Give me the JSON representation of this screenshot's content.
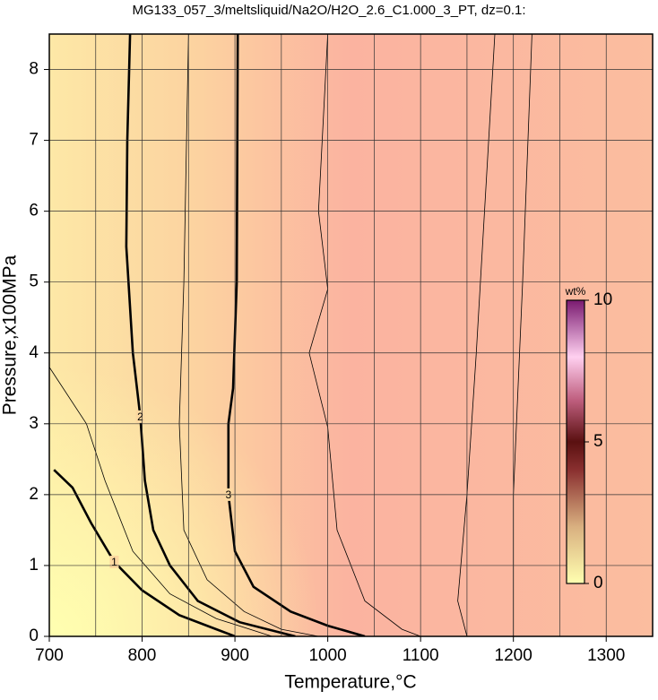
{
  "chart_data": {
    "type": "contour",
    "title": "MG133_057_3/meltsliquid/Na2O/H2O_2.6_C1.000_3_PT, dz=0.1:",
    "x_label": "Temperature,°C",
    "y_label": "Pressure,x100MPa",
    "xlim": [
      700,
      1350
    ],
    "ylim": [
      0,
      8.5
    ],
    "xticks": [
      700,
      800,
      900,
      1000,
      1100,
      1200,
      1300
    ],
    "yticks": [
      0,
      1,
      2,
      3,
      4,
      5,
      6,
      7,
      8
    ],
    "xgrid": [
      750,
      850,
      950,
      1050,
      1150,
      1250
    ],
    "grid": true,
    "contours": [
      {
        "level": 1,
        "labeled": true,
        "x": [
          705,
          725,
          745,
          770,
          800,
          840,
          880,
          900
        ],
        "y": [
          2.35,
          2.1,
          1.6,
          1.05,
          0.65,
          0.3,
          0.1,
          0
        ]
      },
      {
        "level": 2,
        "labeled": true,
        "x": [
          787,
          784,
          783,
          790,
          798,
          803,
          812,
          830,
          860,
          905,
          965
        ],
        "y": [
          8.5,
          7,
          5.5,
          4,
          3.1,
          2.2,
          1.5,
          1.0,
          0.5,
          0.2,
          0
        ]
      },
      {
        "level": 3,
        "labeled": true,
        "x": [
          903,
          902,
          898,
          893,
          893,
          900,
          920,
          960,
          1000,
          1040
        ],
        "y": [
          8.5,
          5,
          3.5,
          3,
          2,
          1.2,
          0.7,
          0.35,
          0.15,
          0
        ]
      },
      {
        "level": 1.5,
        "labeled": false,
        "x": [
          700,
          740,
          760,
          790,
          830,
          880,
          940
        ],
        "y": [
          3.8,
          3.0,
          2.2,
          1.2,
          0.6,
          0.25,
          0
        ]
      },
      {
        "level": 2.5,
        "labeled": false,
        "x": [
          850,
          845,
          840,
          845,
          870,
          910,
          950,
          990
        ],
        "y": [
          8.5,
          5,
          3,
          1.5,
          0.8,
          0.35,
          0.1,
          0
        ]
      },
      {
        "level": 3.2,
        "labeled": false,
        "x": [
          1000,
          990,
          1000,
          980,
          1000,
          1010,
          1040,
          1080,
          1100
        ],
        "y": [
          8.5,
          6,
          4.9,
          4,
          2.95,
          1.5,
          0.5,
          0.1,
          0
        ]
      },
      {
        "level": 3.3,
        "labeled": false,
        "x": [
          1180,
          1160,
          1150,
          1140,
          1150
        ],
        "y": [
          8.5,
          4,
          2,
          0.5,
          0
        ]
      },
      {
        "level": 3.4,
        "labeled": false,
        "x": [
          1220,
          1210,
          1200,
          1200
        ],
        "y": [
          8.5,
          5,
          2,
          0
        ]
      }
    ],
    "colorbar": {
      "label": "wt%",
      "lim": [
        0,
        10
      ],
      "ticks": [
        0,
        5,
        10
      ]
    }
  }
}
